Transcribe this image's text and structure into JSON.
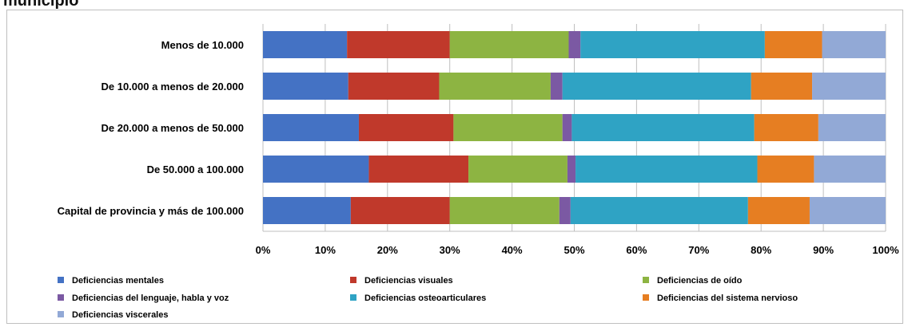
{
  "heading": "municipio",
  "chart_data": {
    "type": "bar",
    "orientation": "horizontal",
    "stacked": "percent",
    "categories": [
      "Menos de 10.000",
      "De 10.000  a menos de 20.000",
      "De 20.000  a menos de 50.000",
      "De 50.000  a 100.000",
      "Capital de provincia y más de 100.000"
    ],
    "series": [
      {
        "name": "Deficiencias  mentales",
        "color": "#4472c4",
        "values": [
          13.5,
          13.7,
          15.4,
          17.0,
          14.1
        ]
      },
      {
        "name": "Deficiencias  visuales",
        "color": "#c0392b",
        "values": [
          16.5,
          14.6,
          15.2,
          16.0,
          15.9
        ]
      },
      {
        "name": "Deficiencias  de oído",
        "color": "#8db442",
        "values": [
          19.1,
          17.9,
          17.5,
          15.9,
          17.6
        ]
      },
      {
        "name": "Deficiencias  del lenguaje, habla y voz",
        "color": "#7b59a3",
        "values": [
          1.9,
          1.9,
          1.5,
          1.3,
          1.8
        ]
      },
      {
        "name": "Deficiencias  osteoarticulares",
        "color": "#2fa3c4",
        "values": [
          29.6,
          30.3,
          29.3,
          29.2,
          28.5
        ]
      },
      {
        "name": "Deficiencias  del sistema nervioso",
        "color": "#e67e22",
        "values": [
          9.2,
          9.8,
          10.3,
          9.1,
          9.9
        ]
      },
      {
        "name": "Deficiencias  viscerales",
        "color": "#92a9d6",
        "values": [
          10.2,
          11.8,
          10.8,
          11.5,
          12.2
        ]
      }
    ],
    "xticks": [
      "0%",
      "10%",
      "20%",
      "30%",
      "40%",
      "50%",
      "60%",
      "70%",
      "80%",
      "90%",
      "100%"
    ],
    "xlim": [
      0,
      100
    ],
    "grid": true,
    "legend_position": "bottom"
  }
}
